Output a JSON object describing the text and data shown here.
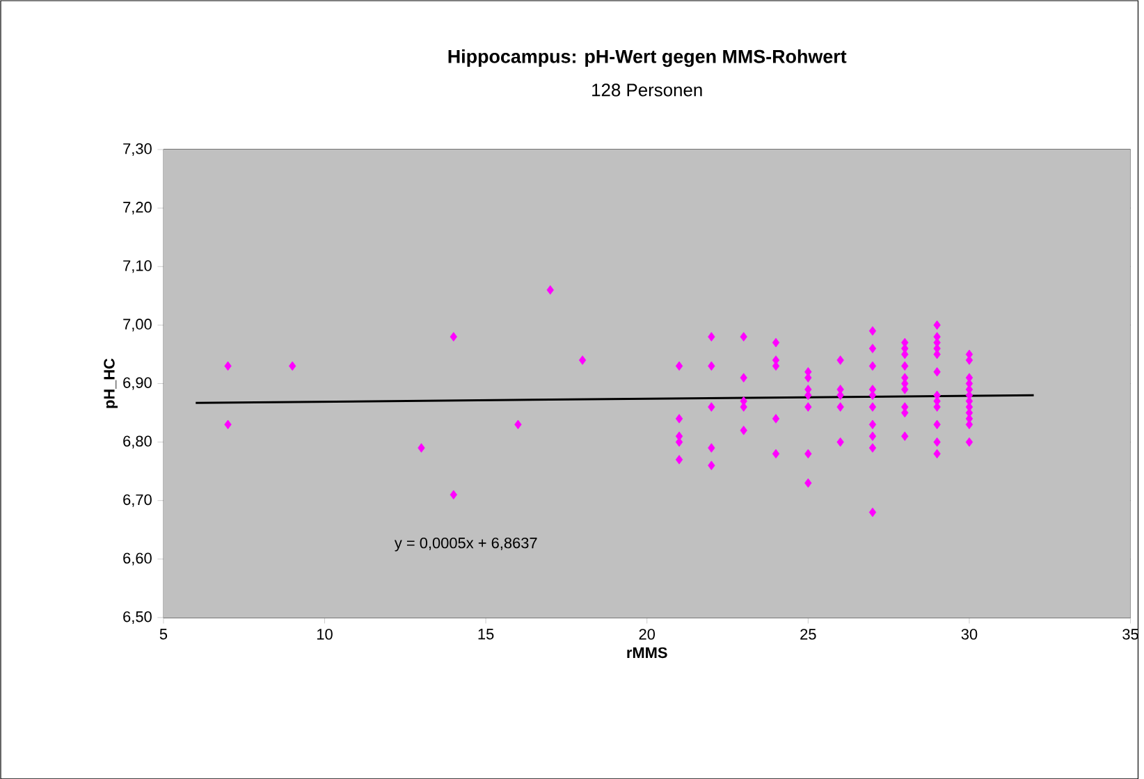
{
  "chart_data": {
    "type": "scatter",
    "title": "Hippocampus:   pH-Wert gegen MMS-Rohwert",
    "subtitle": "128 Personen",
    "xlabel": "rMMS",
    "ylabel": "pH_HC",
    "xlim": [
      5,
      35
    ],
    "xticks": [
      5,
      10,
      15,
      20,
      25,
      30,
      35
    ],
    "ylim": [
      6.5,
      7.3
    ],
    "yticks": [
      {
        "value": 6.5,
        "label": "6,50"
      },
      {
        "value": 6.6,
        "label": "6,60"
      },
      {
        "value": 6.7,
        "label": "6,70"
      },
      {
        "value": 6.8,
        "label": "6,80"
      },
      {
        "value": 6.9,
        "label": "6,90"
      },
      {
        "value": 7.0,
        "label": "7,00"
      },
      {
        "value": 7.1,
        "label": "7,10"
      },
      {
        "value": 7.2,
        "label": "7,20"
      },
      {
        "value": 7.3,
        "label": "7,30"
      }
    ],
    "grid": "y",
    "annotations": [
      "y = 0,0005x + 6,8637"
    ],
    "series": [
      {
        "marker": "diamond",
        "color": "#ff00ff",
        "x": [
          7,
          7,
          9,
          13,
          14,
          14,
          16,
          17,
          18,
          21,
          21,
          21,
          21,
          21,
          22,
          22,
          22,
          22,
          22,
          23,
          23,
          23,
          23,
          23,
          24,
          24,
          24,
          24,
          24,
          25,
          25,
          25,
          25,
          25,
          25,
          25,
          26,
          26,
          26,
          26,
          26,
          27,
          27,
          27,
          27,
          27,
          27,
          27,
          27,
          27,
          27,
          28,
          28,
          28,
          28,
          28,
          28,
          28,
          28,
          28,
          28,
          29,
          29,
          29,
          29,
          29,
          29,
          29,
          29,
          29,
          29,
          29,
          29,
          30,
          30,
          30,
          30,
          30,
          30,
          30,
          30,
          30,
          30,
          30,
          30
        ],
        "values": [
          6.93,
          6.83,
          6.93,
          6.79,
          6.98,
          6.71,
          6.83,
          7.06,
          6.94,
          6.93,
          6.84,
          6.81,
          6.8,
          6.77,
          6.98,
          6.93,
          6.86,
          6.79,
          6.76,
          6.98,
          6.91,
          6.87,
          6.86,
          6.82,
          6.97,
          6.94,
          6.93,
          6.84,
          6.78,
          6.92,
          6.91,
          6.89,
          6.88,
          6.86,
          6.78,
          6.73,
          6.94,
          6.89,
          6.88,
          6.86,
          6.8,
          6.99,
          6.96,
          6.93,
          6.89,
          6.88,
          6.86,
          6.83,
          6.81,
          6.79,
          6.68,
          6.97,
          6.96,
          6.95,
          6.93,
          6.91,
          6.9,
          6.89,
          6.86,
          6.85,
          6.81,
          7.0,
          6.98,
          6.97,
          6.96,
          6.95,
          6.92,
          6.88,
          6.87,
          6.86,
          6.83,
          6.8,
          6.78,
          6.95,
          6.94,
          6.91,
          6.9,
          6.89,
          6.88,
          6.87,
          6.86,
          6.85,
          6.84,
          6.83,
          6.8
        ]
      },
      {
        "type": "line",
        "color": "#000000",
        "x": [
          6,
          32
        ],
        "values": [
          6.867,
          6.88
        ]
      }
    ]
  }
}
